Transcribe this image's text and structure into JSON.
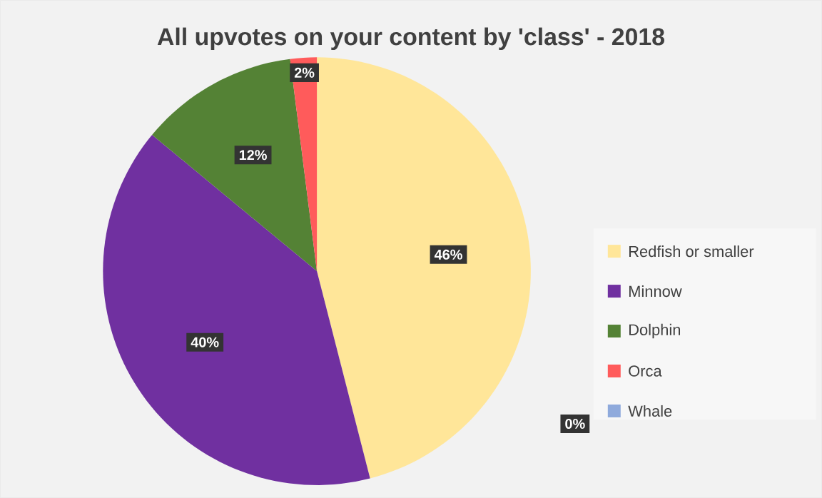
{
  "chart_data": {
    "type": "pie",
    "title": "All upvotes on your content by 'class' - 2018",
    "categories": [
      "Redfish or smaller",
      "Minnow",
      "Dolphin",
      "Orca",
      "Whale"
    ],
    "values": [
      46,
      40,
      12,
      2,
      0
    ],
    "colors": [
      "#ffe699",
      "#7030a0",
      "#548235",
      "#ff5b5b",
      "#8faadc"
    ],
    "value_labels": [
      "46%",
      "40%",
      "12%",
      "2%",
      "0%"
    ],
    "legend": "right"
  }
}
